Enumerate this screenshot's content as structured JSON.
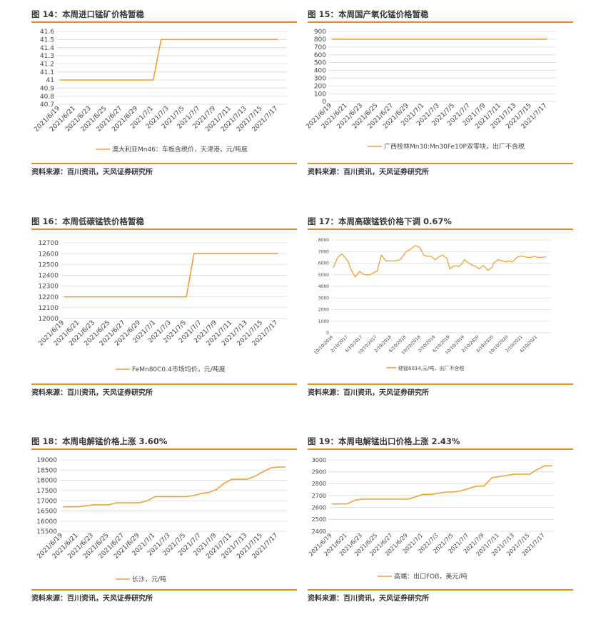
{
  "accent_color": "#ED8B1F",
  "line_color": "#F0A030",
  "grid_color": "#d9d9d9",
  "panels": [
    {
      "id": "p14",
      "title": "图 14：本周进口锰矿价格暂稳",
      "source": "资料来源：百川资讯，天风证券研究所",
      "chart_data": {
        "type": "line",
        "ylim": [
          40.7,
          41.6
        ],
        "yticks": [
          "40.7",
          "40.8",
          "40.9",
          "41",
          "41.1",
          "41.2",
          "41.3",
          "41.4",
          "41.5",
          "41.6"
        ],
        "xticks": [
          "2021/6/19",
          "2021/6/21",
          "2021/6/23",
          "2021/6/25",
          "2021/6/27",
          "2021/6/29",
          "2021/7/1",
          "2021/7/3",
          "2021/7/5",
          "2021/7/7",
          "2021/7/9",
          "2021/7/11",
          "2021/7/13",
          "2021/7/15",
          "2021/7/17"
        ],
        "grid": true,
        "legend_position": "bottom",
        "series": [
          {
            "name": "澳大利亚Mn46：车板含税价，天津港，元/吨度",
            "x": [
              "2021/6/19",
              "2021/7/1",
              "2021/7/2",
              "2021/7/17"
            ],
            "values": [
              41,
              41,
              41.5,
              41.5
            ]
          }
        ]
      }
    },
    {
      "id": "p15",
      "title": "图 15：本周国产氧化锰价格暂稳",
      "source": "资料来源：百川资讯，天风证券研究所",
      "chart_data": {
        "type": "line",
        "ylim": [
          0,
          900
        ],
        "yticks": [
          "0",
          "100",
          "200",
          "300",
          "400",
          "500",
          "600",
          "700",
          "800",
          "900"
        ],
        "xticks": [
          "2021/6/19",
          "2021/6/21",
          "2021/6/23",
          "2021/6/25",
          "2021/6/27",
          "2021/6/29",
          "2021/7/1",
          "2021/7/3",
          "2021/7/5",
          "2021/7/7",
          "2021/7/9",
          "2021/7/11",
          "2021/7/13",
          "2021/7/15",
          "2021/7/17"
        ],
        "grid": true,
        "legend_position": "bottom",
        "series": [
          {
            "name": "广西桂林Mn30:Mn30Fe10P双零块，出厂不含税",
            "x": [
              "2021/6/19",
              "2021/7/17"
            ],
            "values": [
              800,
              800
            ]
          }
        ]
      }
    },
    {
      "id": "p16",
      "title": "图 16：本周低碳锰铁价格暂稳",
      "source": "资料来源：百川资讯，天风证券研究所",
      "chart_data": {
        "type": "line",
        "ylim": [
          12000,
          12700
        ],
        "yticks": [
          "12000",
          "12100",
          "12200",
          "12300",
          "12400",
          "12500",
          "12600",
          "12700"
        ],
        "xticks": [
          "2021/6/19",
          "2021/6/21",
          "2021/6/23",
          "2021/6/25",
          "2021/6/27",
          "2021/6/29",
          "2021/7/1",
          "2021/7/3",
          "2021/7/5",
          "2021/7/7",
          "2021/7/9",
          "2021/7/11",
          "2021/7/13",
          "2021/7/15",
          "2021/7/17"
        ],
        "grid": true,
        "legend_position": "bottom",
        "series": [
          {
            "name": "FeMn80C0.4市场均价，元/吨度",
            "x": [
              "2021/6/19",
              "2021/7/5",
              "2021/7/6",
              "2021/7/17"
            ],
            "values": [
              12200,
              12200,
              12600,
              12600
            ]
          }
        ]
      }
    },
    {
      "id": "p17",
      "title": "图 17：本周高碳锰铁价格下调 0.67%",
      "source": "资料来源：百川资讯，天风证券研究所",
      "chart_data": {
        "type": "line",
        "ylim": [
          0,
          8000
        ],
        "yticks": [
          "0",
          "1000",
          "2000",
          "3000",
          "4000",
          "5000",
          "6000",
          "7000",
          "8000"
        ],
        "xticks": [
          "10/10/2016",
          "2/10/2017",
          "6/10/2017",
          "10/10/2017",
          "2/10/2018",
          "6/10/2018",
          "10/10/2018",
          "2/10/2019",
          "6/10/2019",
          "10/10/2019",
          "2/10/2020",
          "6/10/2020",
          "10/10/2020",
          "2/10/2021",
          "6/10/2021"
        ],
        "grid": true,
        "legend_position": "bottom",
        "series": [
          {
            "name": "硅锰6014,元/吨，出厂不含税",
            "x": [
              0,
              0.3,
              0.6,
              1,
              1.2,
              1.5,
              1.8,
              2,
              2.2,
              2.5,
              2.8,
              3,
              3.3,
              3.6,
              3.9,
              4,
              4.3,
              4.6,
              5,
              5.3,
              5.6,
              5.9,
              6,
              6.2,
              6.4,
              6.7,
              7,
              7.2,
              7.5,
              7.8,
              8,
              8.2,
              8.4,
              8.6,
              8.8,
              9,
              9.3,
              9.6,
              9.8,
              10,
              10.3,
              10.6,
              10.9,
              11,
              11.3,
              11.6,
              11.9,
              12,
              12.3,
              12.6,
              12.8,
              13,
              13.3,
              13.6,
              13.8,
              14,
              14.3,
              14.6
            ],
            "values": [
              5600,
              6500,
              6800,
              6200,
              5500,
              4800,
              5300,
              5100,
              5000,
              5000,
              5200,
              5300,
              6700,
              6200,
              6200,
              6200,
              6200,
              6300,
              7000,
              7200,
              7500,
              7400,
              7200,
              6700,
              6600,
              6600,
              6300,
              6500,
              6700,
              6400,
              5500,
              5700,
              5800,
              5700,
              5900,
              6300,
              6000,
              5800,
              5700,
              5500,
              5800,
              5400,
              5600,
              6000,
              6300,
              6200,
              6100,
              6200,
              6100,
              6500,
              6600,
              6600,
              6500,
              6500,
              6600,
              6500,
              6500,
              6550
            ]
          }
        ]
      }
    },
    {
      "id": "p18",
      "title": "图 18：本周电解锰价格上涨 3.60%",
      "source": "资料来源：百川资讯，天风证券研究所",
      "chart_data": {
        "type": "line",
        "ylim": [
          15500,
          19000
        ],
        "yticks": [
          "15500",
          "16000",
          "16500",
          "17000",
          "17500",
          "18000",
          "18500",
          "19000"
        ],
        "xticks": [
          "2021/6/19",
          "2021/6/21",
          "2021/6/23",
          "2021/6/25",
          "2021/6/27",
          "2021/6/29",
          "2021/7/1",
          "2021/7/3",
          "2021/7/5",
          "2021/7/7",
          "2021/7/9",
          "2021/7/11",
          "2021/7/13",
          "2021/7/15",
          "2021/7/17"
        ],
        "grid": true,
        "legend_position": "bottom",
        "series": [
          {
            "name": "长沙，元/吨",
            "x": [
              "2021/6/19",
              "2021/6/21",
              "2021/6/22",
              "2021/6/23",
              "2021/6/25",
              "2021/6/26",
              "2021/6/29",
              "2021/6/30",
              "2021/7/1",
              "2021/7/2",
              "2021/7/5",
              "2021/7/6",
              "2021/7/7",
              "2021/7/8",
              "2021/7/9",
              "2021/7/10",
              "2021/7/11",
              "2021/7/12",
              "2021/7/13",
              "2021/7/14",
              "2021/7/15",
              "2021/7/16",
              "2021/7/17",
              "2021/7/18"
            ],
            "values": [
              16700,
              16700,
              16750,
              16800,
              16800,
              16900,
              16900,
              17000,
              17200,
              17200,
              17200,
              17250,
              17350,
              17400,
              17550,
              17850,
              18050,
              18050,
              18050,
              18200,
              18400,
              18600,
              18650,
              18650
            ]
          }
        ]
      }
    },
    {
      "id": "p19",
      "title": "图 19：本周电解锰出口价格上涨 2.43%",
      "source": "资料来源：百川资讯，天风证券研究所",
      "chart_data": {
        "type": "line",
        "ylim": [
          2400,
          3000
        ],
        "yticks": [
          "2400",
          "2500",
          "2600",
          "2700",
          "2800",
          "2900",
          "3000"
        ],
        "xticks": [
          "2021/6/19",
          "2021/6/21",
          "2021/6/23",
          "2021/6/25",
          "2021/6/27",
          "2021/6/29",
          "2021/7/1",
          "2021/7/3",
          "2021/7/5",
          "2021/7/7",
          "2021/7/9",
          "2021/7/11",
          "2021/7/13",
          "2021/7/15",
          "2021/7/17"
        ],
        "grid": true,
        "legend_position": "bottom",
        "series": [
          {
            "name": "高端：出口FOB，美元/吨",
            "x": [
              "2021/6/19",
              "2021/6/21",
              "2021/6/22",
              "2021/6/23",
              "2021/6/29",
              "2021/6/30",
              "2021/7/1",
              "2021/7/2",
              "2021/7/3",
              "2021/7/4",
              "2021/7/5",
              "2021/7/6",
              "2021/7/7",
              "2021/7/8",
              "2021/7/9",
              "2021/7/10",
              "2021/7/13",
              "2021/7/14",
              "2021/7/15",
              "2021/7/16",
              "2021/7/17",
              "2021/7/18"
            ],
            "values": [
              2630,
              2630,
              2660,
              2670,
              2670,
              2690,
              2710,
              2710,
              2720,
              2730,
              2730,
              2740,
              2760,
              2780,
              2780,
              2850,
              2880,
              2880,
              2880,
              2920,
              2950,
              2950
            ]
          }
        ]
      }
    }
  ]
}
